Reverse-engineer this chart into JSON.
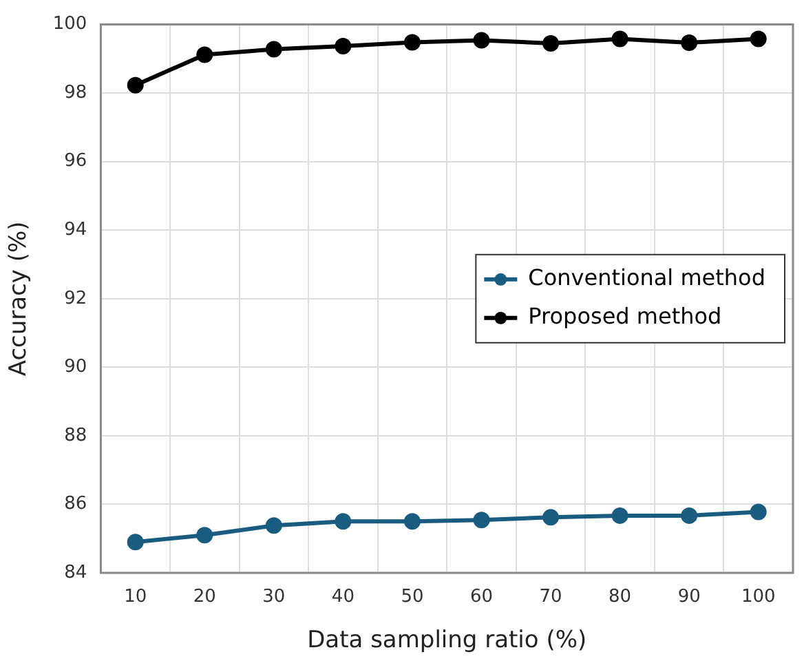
{
  "chart_data": {
    "type": "line",
    "xlabel": "Data sampling ratio (%)",
    "ylabel": "Accuracy (%)",
    "categories": [
      "10",
      "20",
      "30",
      "40",
      "50",
      "60",
      "70",
      "80",
      "90",
      "100"
    ],
    "series": [
      {
        "name": "Conventional method",
        "color": "#1a5c80",
        "values": [
          84.9,
          85.1,
          85.38,
          85.5,
          85.5,
          85.54,
          85.62,
          85.67,
          85.67,
          85.78
        ]
      },
      {
        "name": "Proposed method",
        "color": "#000000",
        "values": [
          98.23,
          99.12,
          99.28,
          99.37,
          99.48,
          99.54,
          99.45,
          99.58,
          99.47,
          99.58
        ]
      }
    ],
    "ylim": [
      84,
      100
    ],
    "yticks": [
      84,
      86,
      88,
      90,
      92,
      94,
      96,
      98,
      100
    ],
    "grid": true,
    "legend": "right",
    "marker": "circle",
    "line_style": "solid"
  }
}
